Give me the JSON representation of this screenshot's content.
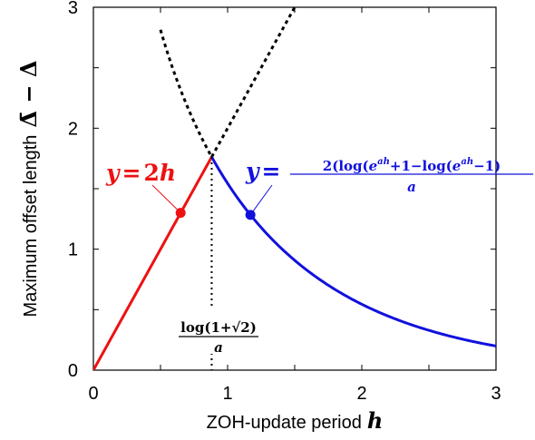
{
  "chart_data": {
    "type": "line",
    "title": "",
    "xlabel": "ZOH-update period",
    "xlabel_symbol": "h",
    "ylabel": "Maximum offset length",
    "ylabel_symbol": "Δ̄ − Δ",
    "xlim": [
      0,
      3
    ],
    "ylim": [
      0,
      3
    ],
    "x_ticks": [
      "0",
      "1",
      "2",
      "3"
    ],
    "y_ticks": [
      "0",
      "1",
      "2",
      "3"
    ],
    "grid": false,
    "colors": {
      "red": "#ee1111",
      "blue": "#1111dd",
      "black": "#000000"
    },
    "series": [
      {
        "label_text": "y = 2h",
        "color": "#ee1111",
        "style": "solid",
        "segment": "x from 0 to log(1+√2)",
        "x": [
          0,
          0.25,
          0.5,
          0.65,
          0.8814
        ],
        "y": [
          0,
          0.5,
          1.0,
          1.3,
          1.7627
        ],
        "marker": {
          "x": 0.65,
          "y": 1.3
        }
      },
      {
        "label_text": "y = 2(log(e^{ah}+1) − log(e^{ah}−1))/a",
        "color": "#1111dd",
        "style": "solid",
        "segment": "x from log(1+√2) to 3",
        "x": [
          0.8814,
          1.0,
          1.17,
          1.5,
          2.0,
          2.5,
          3.0
        ],
        "y": [
          1.7627,
          1.5497,
          1.294,
          0.9142,
          0.5407,
          0.3302,
          0.1997
        ],
        "marker": {
          "x": 1.17,
          "y": 1.294
        }
      }
    ],
    "annotations": {
      "threshold_label": "log(1+√2) / a",
      "threshold_x": 0.8814
    }
  }
}
